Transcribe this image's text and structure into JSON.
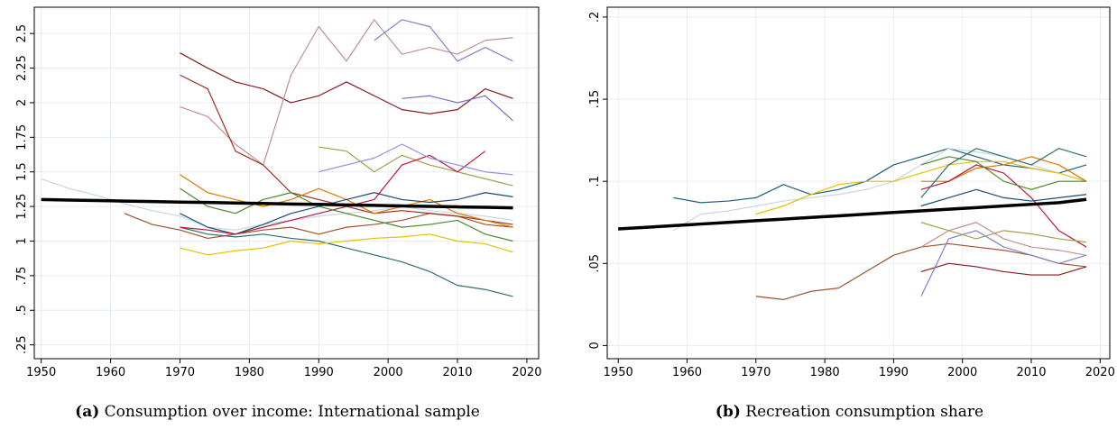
{
  "chart_data": [
    {
      "type": "line",
      "caption_label": "(a)",
      "caption": "Consumption over income: International sample",
      "x": [
        1950,
        1954,
        1958,
        1962,
        1966,
        1970,
        1974,
        1978,
        1982,
        1986,
        1990,
        1994,
        1998,
        2002,
        2006,
        2010,
        2014,
        2018
      ],
      "xlim": [
        1949,
        2021.7
      ],
      "xticks": [
        1950,
        1960,
        1970,
        1980,
        1990,
        2000,
        2010,
        2020
      ],
      "ylim": [
        0.15,
        2.69
      ],
      "yticks": [
        {
          "value": 0.25,
          "label": ".25"
        },
        {
          "value": 0.5,
          "label": ".5"
        },
        {
          "value": 0.75,
          "label": ".75"
        },
        1,
        1.25,
        1.5,
        1.75,
        2,
        2.25,
        2.5
      ],
      "grid": true,
      "series": [
        {
          "color": "#c8d8e0",
          "values": [
            1.45,
            1.38,
            1.33,
            1.27,
            1.22,
            1.18,
            1.1,
            1.08,
            1.12,
            1.15,
            1.18,
            1.2,
            1.22,
            1.25,
            1.22,
            1.2,
            1.18,
            1.15
          ]
        },
        {
          "color": "#a0522d",
          "values": [
            null,
            null,
            null,
            1.2,
            1.12,
            1.08,
            1.02,
            1.05,
            1.08,
            1.1,
            1.05,
            1.1,
            1.12,
            1.15,
            1.2,
            1.18,
            1.12,
            1.1
          ]
        },
        {
          "color": "#8b1a1a",
          "values": [
            null,
            null,
            null,
            null,
            null,
            2.36,
            2.25,
            2.15,
            2.1,
            2.0,
            2.05,
            2.15,
            2.05,
            1.95,
            1.92,
            1.95,
            2.1,
            2.03
          ]
        },
        {
          "color": "#c09090",
          "values": [
            null,
            null,
            null,
            null,
            null,
            1.97,
            1.9,
            1.7,
            1.55,
            2.2,
            2.55,
            2.3,
            2.6,
            2.35,
            2.4,
            2.35,
            2.45,
            2.47
          ]
        },
        {
          "color": "#a03020",
          "values": [
            null,
            null,
            null,
            null,
            null,
            2.2,
            2.1,
            1.65,
            1.55,
            1.35,
            1.3,
            1.25,
            1.2,
            1.22,
            1.2,
            1.18,
            1.15,
            1.12
          ]
        },
        {
          "color": "#8080d0",
          "values": [
            null,
            null,
            null,
            null,
            null,
            null,
            null,
            null,
            null,
            null,
            null,
            null,
            2.45,
            2.6,
            2.55,
            2.3,
            2.4,
            2.3
          ]
        },
        {
          "color": "#7070c8",
          "values": [
            null,
            null,
            null,
            null,
            null,
            null,
            null,
            null,
            null,
            null,
            null,
            null,
            null,
            2.03,
            2.05,
            2.0,
            2.05,
            1.87
          ]
        },
        {
          "color": "#2e6e6e",
          "values": [
            null,
            null,
            null,
            null,
            null,
            1.1,
            1.05,
            1.03,
            1.05,
            1.02,
            1.0,
            0.95,
            0.9,
            0.85,
            0.78,
            0.68,
            0.65,
            0.6
          ]
        },
        {
          "color": "#e8c000",
          "values": [
            null,
            null,
            null,
            null,
            null,
            0.95,
            0.9,
            0.93,
            0.95,
            1.0,
            0.98,
            1.0,
            1.02,
            1.03,
            1.05,
            1.0,
            0.98,
            0.92
          ]
        },
        {
          "color": "#e07800",
          "values": [
            null,
            null,
            null,
            null,
            null,
            1.48,
            1.35,
            1.3,
            1.25,
            1.3,
            1.38,
            1.3,
            1.2,
            1.25,
            1.3,
            1.2,
            1.15,
            1.1
          ]
        },
        {
          "color": "#1a4a7a",
          "values": [
            null,
            null,
            null,
            null,
            null,
            1.2,
            1.1,
            1.05,
            1.12,
            1.2,
            1.25,
            1.3,
            1.35,
            1.3,
            1.28,
            1.3,
            1.35,
            1.32
          ]
        },
        {
          "color": "#a0a050",
          "values": [
            null,
            null,
            null,
            null,
            null,
            null,
            null,
            null,
            null,
            null,
            1.68,
            1.65,
            1.5,
            1.62,
            1.55,
            1.5,
            1.45,
            1.4
          ]
        },
        {
          "color": "#c0143c",
          "values": [
            null,
            null,
            null,
            null,
            null,
            1.1,
            1.08,
            1.05,
            1.1,
            1.15,
            1.2,
            1.25,
            1.3,
            1.55,
            1.62,
            1.5,
            1.65,
            null
          ]
        },
        {
          "color": "#4a8a2a",
          "values": [
            null,
            null,
            null,
            null,
            null,
            1.38,
            1.25,
            1.2,
            1.3,
            1.35,
            1.25,
            1.2,
            1.15,
            1.1,
            1.12,
            1.15,
            1.05,
            1.0
          ]
        },
        {
          "color": "#9090e0",
          "values": [
            null,
            null,
            null,
            null,
            null,
            null,
            null,
            null,
            null,
            null,
            1.5,
            1.55,
            1.6,
            1.7,
            1.6,
            1.55,
            1.5,
            1.48
          ]
        },
        {
          "color": "#000000",
          "values": [
            1.3,
            1.296,
            1.293,
            1.289,
            1.286,
            1.282,
            1.279,
            1.275,
            1.272,
            1.268,
            1.265,
            1.261,
            1.258,
            1.254,
            1.251,
            1.247,
            1.244,
            1.24
          ]
        }
      ]
    },
    {
      "type": "line",
      "caption_label": "(b)",
      "caption": "Recreation consumption share",
      "x": [
        1950,
        1954,
        1958,
        1962,
        1966,
        1970,
        1974,
        1978,
        1982,
        1986,
        1990,
        1994,
        1998,
        2002,
        2006,
        2010,
        2014,
        2018
      ],
      "xlim": [
        1948.4,
        2021.4
      ],
      "xticks": [
        1950,
        1960,
        1970,
        1980,
        1990,
        2000,
        2010,
        2020
      ],
      "ylim": [
        -0.008,
        0.206
      ],
      "yticks": [
        0,
        {
          "value": 0.05,
          "label": ".05"
        },
        {
          "value": 0.1,
          "label": ".1"
        },
        {
          "value": 0.15,
          "label": ".15"
        },
        {
          "value": 0.2,
          "label": ".2"
        }
      ],
      "grid": true,
      "series": [
        {
          "color": "#1f5f7f",
          "values": [
            null,
            null,
            0.09,
            0.087,
            0.088,
            0.09,
            0.098,
            0.092,
            0.095,
            0.1,
            0.11,
            0.115,
            0.12,
            0.115,
            0.11,
            0.108,
            0.105,
            0.11
          ]
        },
        {
          "color": "#c8d8e0",
          "values": [
            null,
            null,
            0.07,
            0.08,
            0.082,
            0.085,
            0.088,
            0.09,
            0.092,
            0.095,
            0.1,
            0.11,
            0.12,
            0.118,
            0.115,
            0.11,
            0.105,
            0.1
          ]
        },
        {
          "color": "#a0522d",
          "values": [
            null,
            null,
            null,
            null,
            null,
            0.03,
            0.028,
            0.033,
            0.035,
            0.045,
            0.055,
            0.06,
            0.062,
            0.06,
            0.058,
            0.055,
            0.05,
            0.048
          ]
        },
        {
          "color": "#8b1a1a",
          "values": [
            null,
            null,
            null,
            null,
            null,
            null,
            null,
            null,
            null,
            null,
            null,
            0.045,
            0.05,
            0.048,
            0.045,
            0.043,
            0.043,
            0.048
          ]
        },
        {
          "color": "#e8c000",
          "values": [
            null,
            null,
            null,
            null,
            null,
            0.08,
            0.085,
            0.092,
            0.098,
            0.1,
            0.1,
            0.105,
            0.11,
            0.112,
            0.112,
            0.108,
            0.105,
            0.1
          ]
        },
        {
          "color": "#e07800",
          "values": [
            null,
            null,
            null,
            null,
            null,
            null,
            null,
            null,
            null,
            null,
            null,
            0.1,
            0.1,
            0.108,
            0.11,
            0.115,
            0.11,
            0.1
          ]
        },
        {
          "color": "#8080d0",
          "values": [
            null,
            null,
            null,
            null,
            null,
            null,
            null,
            null,
            null,
            null,
            null,
            0.03,
            0.065,
            0.07,
            0.06,
            0.055,
            0.05,
            0.055
          ]
        },
        {
          "color": "#c0143c",
          "values": [
            null,
            null,
            null,
            null,
            null,
            null,
            null,
            null,
            null,
            null,
            null,
            0.095,
            0.1,
            0.11,
            0.105,
            0.09,
            0.07,
            0.06
          ]
        },
        {
          "color": "#a0a050",
          "values": [
            null,
            null,
            null,
            null,
            null,
            null,
            null,
            null,
            null,
            null,
            null,
            0.075,
            0.07,
            0.065,
            0.07,
            0.068,
            0.065,
            0.063
          ]
        },
        {
          "color": "#4a8a2a",
          "values": [
            null,
            null,
            null,
            null,
            null,
            null,
            null,
            null,
            null,
            null,
            null,
            0.11,
            0.115,
            0.112,
            0.1,
            0.095,
            0.1,
            0.1
          ]
        },
        {
          "color": "#2e6e6e",
          "values": [
            null,
            null,
            null,
            null,
            null,
            null,
            null,
            null,
            null,
            null,
            null,
            0.09,
            0.11,
            0.12,
            0.115,
            0.11,
            0.12,
            0.115
          ]
        },
        {
          "color": "#1a4a7a",
          "values": [
            null,
            null,
            null,
            null,
            null,
            null,
            null,
            null,
            null,
            null,
            null,
            0.085,
            0.09,
            0.095,
            0.09,
            0.088,
            0.09,
            0.092
          ]
        },
        {
          "color": "#c09090",
          "values": [
            null,
            null,
            null,
            null,
            null,
            null,
            null,
            null,
            null,
            null,
            null,
            0.06,
            0.07,
            0.075,
            0.065,
            0.06,
            0.058,
            0.055
          ]
        },
        {
          "color": "#000000",
          "values": [
            0.071,
            0.072,
            0.073,
            0.074,
            0.075,
            0.076,
            0.077,
            0.078,
            0.079,
            0.08,
            0.081,
            0.082,
            0.083,
            0.084,
            0.085,
            0.086,
            0.087,
            0.089
          ]
        }
      ]
    }
  ]
}
